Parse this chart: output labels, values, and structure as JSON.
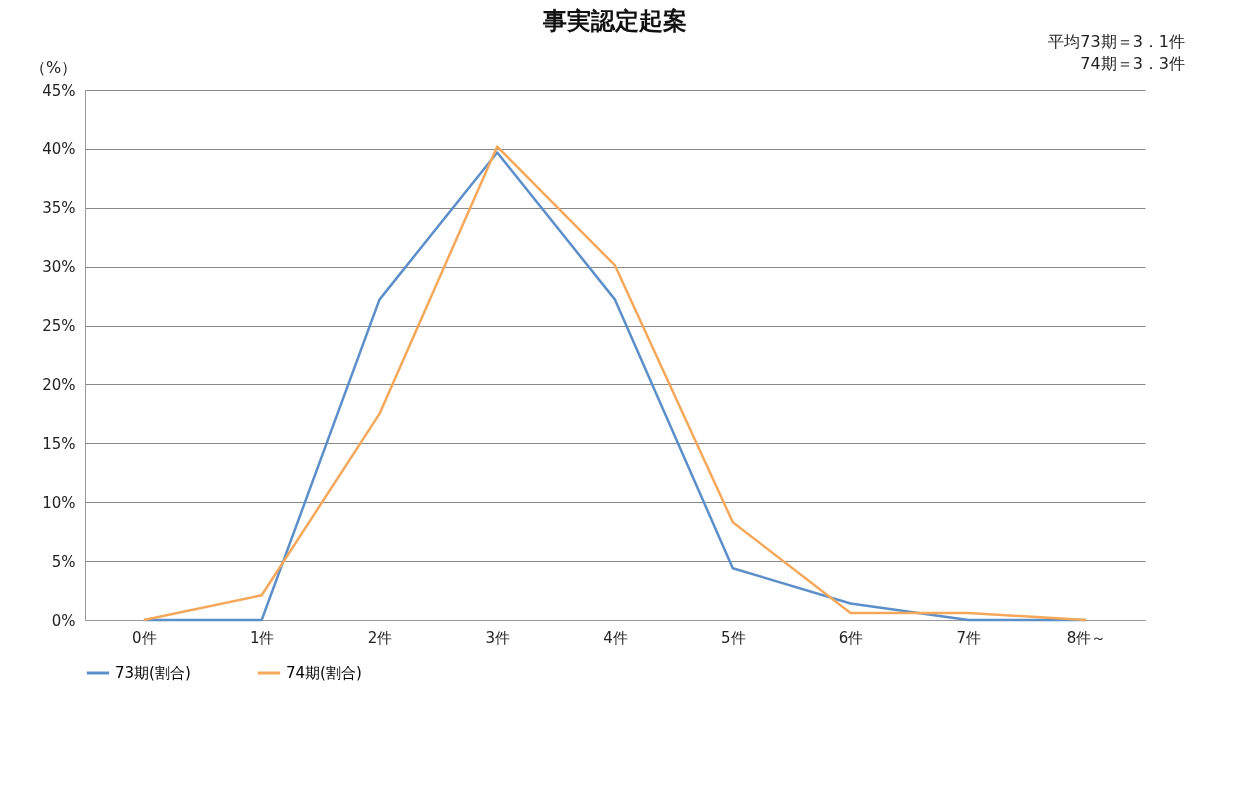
{
  "chart_data": {
    "type": "line",
    "title": "事実認定起案",
    "ylabel": "（%）",
    "annotations": [
      "平均73期＝3．1件",
      "74期＝3．3件"
    ],
    "categories": [
      "0件",
      "1件",
      "2件",
      "3件",
      "4件",
      "5件",
      "6件",
      "7件",
      "8件～"
    ],
    "series": [
      {
        "name": "73期(割合)",
        "color": "#5b8fc9",
        "values": [
          0,
          0,
          27.2,
          39.7,
          27.2,
          4.4,
          1.4,
          0,
          0
        ]
      },
      {
        "name": "74期(割合)",
        "color": "#f5a85a",
        "values": [
          0,
          2.1,
          17.5,
          40.2,
          30.1,
          8.3,
          0.6,
          0.6,
          0
        ]
      }
    ],
    "ylim": [
      0,
      45
    ],
    "yticks": [
      {
        "value": 0,
        "label": "0%"
      },
      {
        "value": 5,
        "label": "5%"
      },
      {
        "value": 10,
        "label": "10%"
      },
      {
        "value": 15,
        "label": "15%"
      },
      {
        "value": 20,
        "label": "20%"
      },
      {
        "value": 25,
        "label": "25%"
      },
      {
        "value": 30,
        "label": "30%"
      },
      {
        "value": 35,
        "label": "35%"
      },
      {
        "value": 40,
        "label": "40%"
      },
      {
        "value": 45,
        "label": "45%"
      }
    ],
    "grid": "y",
    "legend": "bottom",
    "marker": "none",
    "line_style": "solid"
  }
}
